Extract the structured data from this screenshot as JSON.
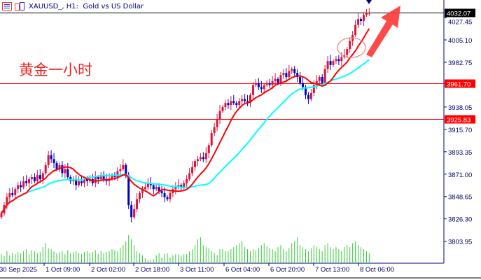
{
  "header": {
    "title": "XAUUSD_, H1:  Gold vs US Dollar",
    "icons": [
      "order-list-icon",
      "chart-template-icon"
    ]
  },
  "annotation": {
    "text": "黄金一小时",
    "color": "#ee2222"
  },
  "chart_data": {
    "type": "candlestick",
    "symbol": "XAUUSD_",
    "timeframe": "H1",
    "ylim": [
      3790,
      4040
    ],
    "y_ticks": [
      "4027.45",
      "4005.10",
      "3982.75",
      "3961.70",
      "3938.05",
      "3915.70",
      "3893.35",
      "3871.00",
      "3848.65",
      "3826.30",
      "3803.95"
    ],
    "x_ticks": [
      "30 Sep 2025",
      "1 Oct 09:00",
      "2 Oct 02:00",
      "2 Oct 18:00",
      "3 Oct 11:00",
      "6 Oct 04:00",
      "6 Oct 20:00",
      "7 Oct 13:00",
      "8 Oct 06:00"
    ],
    "price_lines": [
      {
        "label": "4032.07",
        "value": 4032.07,
        "color": "#000000"
      },
      {
        "label": "3961.70",
        "value": 3961.7,
        "color": "#ff0000"
      },
      {
        "label": "3925.83",
        "value": 3925.83,
        "color": "#ff0000"
      }
    ],
    "colors": {
      "bull": "#dc143c",
      "bear": "#0000cd",
      "ma_fast": "#ff0000",
      "ma_slow": "#00ffff",
      "volume": "#32cd32",
      "axis": "#000080"
    },
    "close": [
      3832,
      3840,
      3848,
      3852,
      3850,
      3856,
      3860,
      3858,
      3864,
      3862,
      3866,
      3868,
      3864,
      3870,
      3866,
      3872,
      3880,
      3890,
      3886,
      3882,
      3876,
      3880,
      3872,
      3876,
      3868,
      3864,
      3866,
      3860,
      3864,
      3862,
      3866,
      3864,
      3866,
      3862,
      3868,
      3866,
      3870,
      3866,
      3864,
      3866,
      3870,
      3868,
      3874,
      3876,
      3880,
      3870,
      3840,
      3828,
      3836,
      3846,
      3852,
      3856,
      3858,
      3862,
      3860,
      3856,
      3858,
      3854,
      3852,
      3848,
      3846,
      3852,
      3856,
      3858,
      3860,
      3858,
      3862,
      3866,
      3872,
      3878,
      3884,
      3886,
      3888,
      3886,
      3892,
      3900,
      3912,
      3918,
      3926,
      3934,
      3938,
      3942,
      3940,
      3944,
      3942,
      3940,
      3944,
      3946,
      3944,
      3942,
      3950,
      3960,
      3962,
      3958,
      3956,
      3960,
      3962,
      3960,
      3964,
      3966,
      3962,
      3970,
      3972,
      3968,
      3974,
      3976,
      3972,
      3968,
      3962,
      3958,
      3950,
      3946,
      3952,
      3960,
      3964,
      3968,
      3962,
      3976,
      3984,
      3980,
      3984,
      3986,
      3984,
      3988,
      3990,
      3996,
      4004,
      4010,
      4020,
      4026,
      4024,
      4030,
      4032,
      4032
    ],
    "volume": [
      9,
      7,
      12,
      8,
      10,
      9,
      11,
      10,
      12,
      14,
      9,
      13,
      12,
      10,
      11,
      16,
      20,
      15,
      14,
      12,
      10,
      11,
      12,
      9,
      13,
      10,
      11,
      12,
      10,
      9,
      11,
      12,
      10,
      11,
      13,
      9,
      12,
      10,
      11,
      12,
      14,
      13,
      12,
      15,
      18,
      22,
      28,
      24,
      18,
      12,
      10,
      8,
      5,
      3,
      3,
      4,
      8,
      10,
      6,
      9,
      10,
      6,
      8,
      9,
      9,
      8,
      9,
      9,
      12,
      14,
      18,
      24,
      26,
      18,
      16,
      15,
      12,
      10,
      8,
      14,
      14,
      12,
      12,
      14,
      16,
      18,
      20,
      22,
      16,
      14,
      12,
      14,
      13,
      15,
      18,
      20,
      17,
      15,
      14,
      12,
      16,
      18,
      14,
      12,
      15,
      20,
      22,
      26,
      18,
      16,
      14,
      12,
      15,
      18,
      16,
      14,
      12,
      18,
      20,
      16,
      14,
      16,
      14,
      12,
      16,
      18,
      16,
      20,
      22,
      18,
      16,
      14,
      12,
      10
    ],
    "ma_fast_period": 10,
    "ma_slow_period": 30
  }
}
